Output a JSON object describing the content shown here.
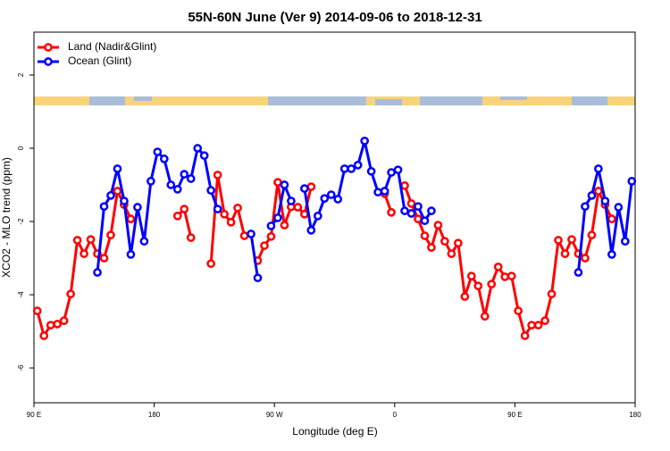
{
  "chart_data": {
    "type": "line",
    "title": "55N-60N June (Ver 9)   2014-09-06 to 2018-12-31",
    "x_label": "Longitude (deg E)",
    "y_label": "XCO2 - MLO trend (ppm)",
    "x": [
      92.5,
      97.5,
      102.5,
      107.5,
      112.5,
      117.5,
      122.5,
      127.5,
      132.5,
      137.5,
      142.5,
      147.5,
      152.5,
      157.5,
      162.5,
      167.5,
      172.5,
      177.5,
      182.5,
      187.5,
      192.5,
      197.5,
      202.5,
      207.5,
      212.5,
      217.5,
      222.5,
      227.5,
      232.5,
      237.5,
      242.5,
      247.5,
      252.5,
      257.5,
      262.5,
      267.5,
      272.5,
      277.5,
      282.5,
      287.5,
      292.5,
      297.5,
      302.5,
      307.5,
      312.5,
      317.5,
      322.5,
      327.5,
      332.5,
      337.5,
      342.5,
      347.5,
      352.5,
      357.5,
      362.5,
      367.5,
      372.5,
      377.5,
      382.5,
      387.5,
      392.5,
      397.5,
      402.5,
      407.5,
      412.5,
      417.5,
      422.5,
      427.5,
      432.5,
      437.5,
      442.5,
      447.5,
      452.5,
      457.5,
      462.5,
      467.5,
      472.5,
      477.5,
      482.5,
      487.5,
      492.5,
      497.5,
      502.5,
      507.5,
      512.5,
      517.5,
      522.5,
      527.5,
      532.5,
      537.5
    ],
    "series": [
      {
        "name": "Land (Nadir&Glint)",
        "color": "#ff0000",
        "values": [
          -4.44,
          -5.12,
          -4.83,
          -4.8,
          -4.71,
          -3.98,
          -2.51,
          -2.88,
          -2.49,
          -2.88,
          -3.0,
          -2.37,
          -1.17,
          -1.54,
          -1.93,
          null,
          null,
          null,
          null,
          null,
          null,
          -1.85,
          -1.66,
          -2.44,
          null,
          null,
          -3.15,
          -0.73,
          -1.8,
          -2.02,
          -1.63,
          -2.39,
          null,
          -3.07,
          -2.66,
          -2.41,
          -0.93,
          -2.1,
          -1.6,
          -1.61,
          -1.8,
          -1.05,
          null,
          null,
          null,
          null,
          null,
          null,
          null,
          null,
          null,
          null,
          -1.24,
          -1.75,
          null,
          -1.02,
          -1.51,
          -1.93,
          -2.39,
          -2.71,
          -2.1,
          -2.54,
          -2.88,
          -2.59,
          -4.05,
          -3.49,
          -3.76,
          -4.59,
          -3.71,
          -3.24,
          -3.51,
          -3.49,
          -4.44,
          -5.12,
          -4.83,
          -4.83,
          -4.71,
          -3.98,
          -2.51,
          -2.88,
          -2.49,
          -2.88,
          -3.0,
          -2.37,
          -1.17,
          -1.54,
          -1.93,
          null,
          null,
          null
        ]
      },
      {
        "name": "Ocean (Glint)",
        "color": "#0000ff",
        "values": [
          null,
          null,
          null,
          null,
          null,
          null,
          null,
          null,
          null,
          -3.39,
          -1.59,
          -1.29,
          -0.56,
          -1.44,
          -2.9,
          -1.61,
          -2.54,
          -0.9,
          -0.1,
          -0.29,
          -1.0,
          -1.12,
          -0.71,
          -0.83,
          0.0,
          -0.2,
          -1.15,
          -1.66,
          null,
          null,
          null,
          null,
          -2.34,
          -3.54,
          null,
          -2.12,
          -1.9,
          -1.0,
          -1.44,
          null,
          -1.1,
          -2.24,
          -1.85,
          -1.37,
          -1.27,
          -1.39,
          -0.56,
          -0.56,
          -0.46,
          0.2,
          -0.63,
          -1.2,
          -1.17,
          -0.66,
          -0.59,
          -1.71,
          -1.78,
          -1.59,
          -1.98,
          -1.71,
          null,
          null,
          null,
          null,
          null,
          null,
          null,
          null,
          null,
          null,
          null,
          null,
          null,
          null,
          null,
          null,
          null,
          null,
          null,
          null,
          null,
          -3.39,
          -1.59,
          -1.29,
          -0.56,
          -1.44,
          -2.9,
          -1.61,
          -2.54,
          -0.9
        ]
      }
    ],
    "xlim": [
      90,
      540
    ],
    "xticks": [
      {
        "value": 90,
        "label": "90 E"
      },
      180,
      {
        "value": 270,
        "label": "90 W"
      },
      {
        "value": 360,
        "label": "0"
      },
      {
        "value": 450,
        "label": "90 E"
      },
      {
        "value": 540,
        "label": "180"
      }
    ],
    "ylim": [
      -6.95,
      3.17
    ],
    "yticks": [
      -6,
      -4,
      -2,
      0,
      2
    ],
    "legend": "topleft"
  }
}
